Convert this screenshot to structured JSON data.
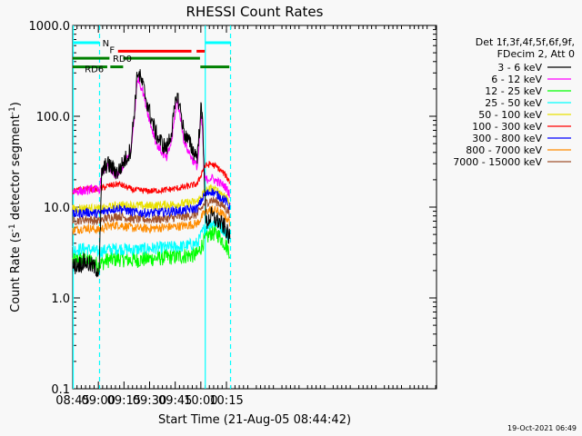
{
  "chart_data": {
    "type": "line",
    "title": "RHESSI Count Rates",
    "xlabel": "Start Time (21-Aug-05 08:44:42)",
    "ylabel": "Count Rate (s⁻¹ detector segment⁻¹)",
    "ylabel_parts": {
      "text1": "Count Rate (s",
      "sup1": "-1",
      "text2": " detector segment",
      "sup2": "-1",
      "text3": ")"
    },
    "yscale": "log",
    "xlim": [
      525,
      738
    ],
    "ylim": [
      0.1,
      1000
    ],
    "x_unit": "minutes since 00:00 UT, 21-Aug-05",
    "x_ticks": [
      {
        "value": 525,
        "label": "08:45"
      },
      {
        "value": 540,
        "label": "09:00"
      },
      {
        "value": 555,
        "label": "09:15"
      },
      {
        "value": 570,
        "label": "09:30"
      },
      {
        "value": 585,
        "label": "09:45"
      },
      {
        "value": 600,
        "label": "10:00"
      },
      {
        "value": 615,
        "label": "10:15"
      }
    ],
    "y_ticks": [
      {
        "value": 0.1,
        "label": "0.1"
      },
      {
        "value": 1,
        "label": "1.0"
      },
      {
        "value": 10,
        "label": "10.0"
      },
      {
        "value": 100,
        "label": "100.0"
      },
      {
        "value": 1000,
        "label": "1000.0"
      }
    ],
    "legend_header": [
      "Det 1f,3f,4f,5f,6f,9f,",
      "FDecim 2, Att 0"
    ],
    "legend_position": "right",
    "series": [
      {
        "name": "3 - 6 keV",
        "color": "#000000",
        "x": [
          525,
          532,
          537,
          540.5,
          542,
          545,
          548,
          551,
          553,
          555,
          557,
          559,
          561,
          563,
          566,
          570,
          574,
          578,
          580,
          583,
          586,
          588,
          590,
          592,
          594,
          596,
          598,
          599,
          600,
          601,
          602,
          603,
          606,
          610,
          614,
          617
        ],
        "y": [
          2.2,
          2.5,
          2.2,
          2.0,
          24,
          30,
          27,
          24,
          27,
          32,
          36,
          44,
          110,
          320,
          220,
          110,
          62,
          48,
          44,
          70,
          175,
          120,
          68,
          56,
          48,
          40,
          37,
          65,
          120,
          90,
          25,
          6.5,
          8,
          7,
          6,
          4.5
        ]
      },
      {
        "name": "6 - 12 keV",
        "color": "#ff00ff",
        "x": [
          525,
          532,
          537,
          540.5,
          542,
          545,
          548,
          551,
          553,
          555,
          557,
          559,
          561,
          563,
          566,
          570,
          574,
          578,
          580,
          583,
          586,
          588,
          590,
          592,
          594,
          596,
          598,
          599,
          600,
          601,
          602,
          603,
          606,
          610,
          614,
          617
        ],
        "y": [
          15,
          15,
          16,
          15,
          24,
          28,
          24,
          22,
          25,
          30,
          34,
          40,
          95,
          270,
          190,
          90,
          50,
          38,
          34,
          55,
          150,
          100,
          55,
          44,
          37,
          31,
          28,
          50,
          100,
          70,
          22,
          20,
          21,
          19,
          17,
          14
        ]
      },
      {
        "name": "12 - 25 keV",
        "color": "#00ff00",
        "x": [
          525,
          533,
          540,
          545,
          552,
          560,
          570,
          580,
          590,
          598,
          602,
          606,
          610,
          614,
          617
        ],
        "y": [
          2.6,
          2.7,
          2.3,
          2.6,
          2.7,
          2.6,
          2.7,
          2.8,
          2.9,
          3.0,
          4.3,
          5.2,
          5.0,
          4.0,
          3.2
        ]
      },
      {
        "name": "25 - 50 keV",
        "color": "#00ffff",
        "x": [
          525,
          533,
          540,
          545,
          552,
          560,
          570,
          580,
          590,
          598,
          602,
          606,
          610,
          614,
          617
        ],
        "y": [
          3.4,
          3.5,
          3.2,
          3.4,
          3.5,
          3.4,
          3.5,
          3.6,
          3.7,
          4.0,
          5.8,
          6.8,
          6.5,
          5.5,
          4.4
        ]
      },
      {
        "name": "50 - 100 keV",
        "color": "#e8e000",
        "x": [
          525,
          533,
          540,
          545,
          552,
          560,
          570,
          580,
          590,
          598,
          602,
          606,
          610,
          614,
          617
        ],
        "y": [
          9.5,
          9.8,
          9.5,
          9.8,
          10.5,
          10.4,
          10.3,
          10.6,
          10.9,
          11.5,
          14.5,
          16,
          15,
          13.5,
          11.5
        ]
      },
      {
        "name": "100 - 300 keV",
        "color": "#ff0000",
        "x": [
          525,
          533,
          540,
          545,
          552,
          560,
          570,
          580,
          590,
          598,
          602,
          606,
          610,
          614,
          617
        ],
        "y": [
          15,
          16,
          15.5,
          17,
          18,
          15.5,
          15,
          15.5,
          16.5,
          18,
          28,
          30,
          27,
          23,
          19
        ]
      },
      {
        "name": "300 - 800 keV",
        "color": "#0000ff",
        "x": [
          525,
          533,
          540,
          545,
          552,
          560,
          570,
          580,
          590,
          598,
          602,
          606,
          610,
          614,
          617
        ],
        "y": [
          8.3,
          8.8,
          8.5,
          9.2,
          9.8,
          8.8,
          8.6,
          8.9,
          9.2,
          9.7,
          13.5,
          15,
          13.5,
          12,
          10
        ]
      },
      {
        "name": "800 - 7000 keV",
        "color": "#ff8c00",
        "x": [
          525,
          533,
          540,
          545,
          552,
          560,
          570,
          580,
          590,
          598,
          602,
          606,
          610,
          614,
          617
        ],
        "y": [
          5.6,
          5.9,
          5.6,
          6.1,
          6.4,
          5.9,
          5.8,
          6.0,
          6.2,
          6.6,
          8.6,
          9.5,
          9.0,
          8.0,
          6.8
        ]
      },
      {
        "name": "7000 - 15000 keV",
        "color": "#a0522d",
        "x": [
          525,
          533,
          540,
          545,
          552,
          560,
          570,
          580,
          590,
          598,
          602,
          606,
          610,
          614,
          617
        ],
        "y": [
          7.0,
          7.4,
          7.0,
          7.6,
          8.0,
          7.4,
          7.3,
          7.5,
          7.8,
          8.3,
          10.8,
          12,
          11.3,
          10,
          8.5
        ]
      }
    ],
    "vertical_lines": [
      {
        "x": 525.3,
        "style": "solid",
        "color": "#00ffff"
      },
      {
        "x": 540.7,
        "style": "dashed",
        "color": "#00ffff"
      },
      {
        "x": 602.6,
        "style": "solid",
        "color": "#00ffff"
      },
      {
        "x": 617.4,
        "style": "dashed",
        "color": "#00ffff"
      }
    ],
    "annotation_bars": [
      {
        "label": "N",
        "color": "#00ffff",
        "y": 645,
        "segments": [
          [
            525,
            540.5
          ],
          [
            602.6,
            617.5
          ]
        ]
      },
      {
        "label": "F",
        "color": "#ff0000",
        "y": 520,
        "segments": [
          [
            551.5,
            594.5
          ],
          [
            597.5,
            602.3
          ]
        ]
      },
      {
        "label": "RD0",
        "color": "#008000",
        "y": 435,
        "segments": [
          [
            525,
            546.5
          ],
          [
            554.5,
            599.5
          ],
          [
            617.3,
            617.6
          ]
        ]
      },
      {
        "label": "RD6",
        "color": "#008000",
        "y": 350,
        "segments": [
          [
            525,
            545.2
          ],
          [
            547,
            554.5
          ],
          [
            599.7,
            616.7
          ]
        ]
      }
    ]
  },
  "footer": {
    "timestamp": "19-Oct-2021 06:49"
  }
}
